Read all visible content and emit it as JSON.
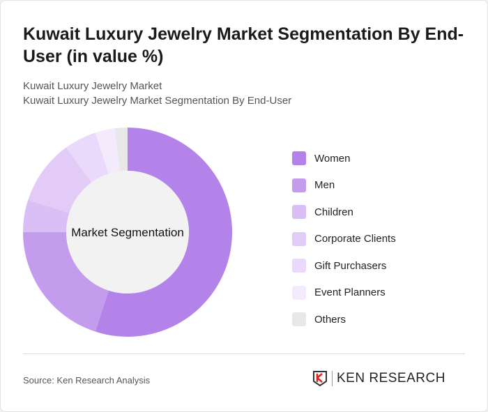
{
  "title": "Kuwait Luxury Jewelry Market Segmentation By End-User (in value %)",
  "subtitle1": "Kuwait Luxury Jewelry Market",
  "subtitle2": "Kuwait Luxury Jewelry Market Segmentation By End-User",
  "source": "Source: Ken Research Analysis",
  "logo_text": "KEN RESEARCH",
  "chart_data": {
    "type": "pie",
    "donut": true,
    "center_label": "Market Segmentation",
    "categories": [
      "Women",
      "Men",
      "Children",
      "Corporate Clients",
      "Gift Purchasers",
      "Event Planners",
      "Others"
    ],
    "values": [
      55,
      20,
      5,
      10,
      5,
      3,
      2
    ],
    "colors": [
      "#b383ea",
      "#c49cee",
      "#d9bff5",
      "#e2cbf7",
      "#ead9fa",
      "#f3ebfc",
      "#e8e8e8"
    ],
    "legend_position": "right"
  }
}
